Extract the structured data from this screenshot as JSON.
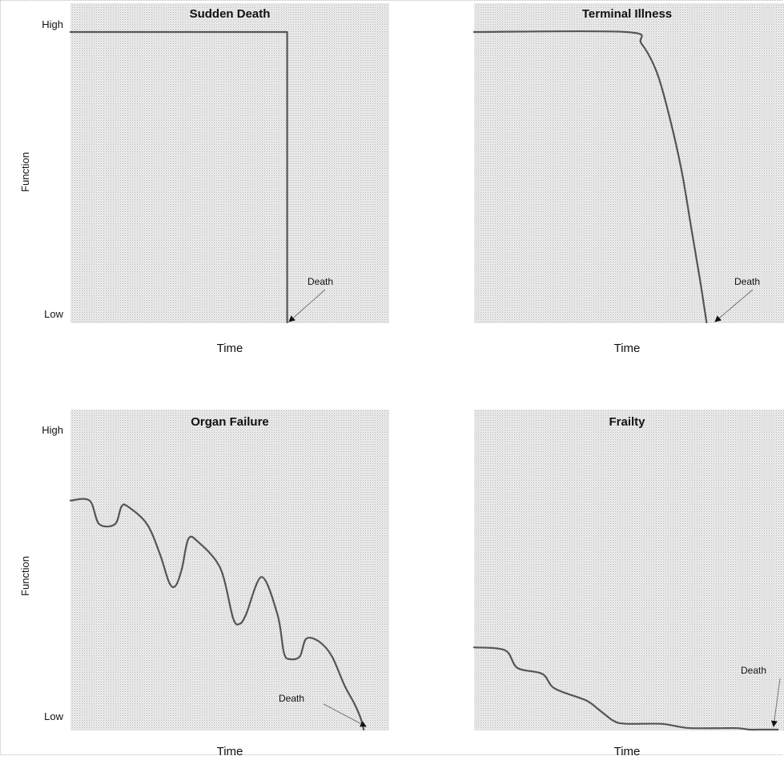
{
  "chart_data": [
    {
      "type": "line",
      "title": "Sudden Death",
      "xlabel": "Time",
      "ylabel": "Function",
      "yticks": [
        "High",
        "Low"
      ],
      "ylim": [
        0,
        100
      ],
      "xlim": [
        0,
        100
      ],
      "x": [
        0,
        68,
        68
      ],
      "y": [
        100,
        100,
        0
      ],
      "annotation": {
        "text": "Death",
        "x": 68,
        "y": 0
      }
    },
    {
      "type": "line",
      "title": "Terminal Illness",
      "xlabel": "Time",
      "ylabel": "",
      "yticks": [],
      "ylim": [
        0,
        100
      ],
      "xlim": [
        0,
        100
      ],
      "x": [
        0,
        49,
        54,
        59,
        63,
        67,
        70,
        73,
        75
      ],
      "y": [
        100,
        100,
        96,
        86,
        71,
        52,
        33,
        14,
        0
      ],
      "annotation": {
        "text": "Death",
        "x": 76,
        "y": 0
      }
    },
    {
      "type": "line",
      "title": "Organ Failure",
      "xlabel": "Time",
      "ylabel": "Function",
      "yticks": [
        "High",
        "Low"
      ],
      "ylim": [
        0,
        100
      ],
      "xlim": [
        0,
        100
      ],
      "x": [
        0,
        6,
        9,
        14,
        16,
        18,
        24,
        28,
        31,
        33,
        35,
        37,
        40,
        47,
        51,
        53,
        55,
        60,
        65,
        67,
        69,
        72,
        74,
        78,
        82,
        86,
        89,
        91,
        92
      ],
      "y": [
        78,
        78,
        70,
        70,
        76,
        76,
        70,
        60,
        50,
        49,
        55,
        65,
        64,
        55,
        38,
        36,
        39,
        52,
        39,
        26,
        24,
        25,
        31,
        30,
        25,
        15,
        9,
        4,
        0
      ],
      "annotation": {
        "text": "Death",
        "x": 91,
        "y": 0
      }
    },
    {
      "type": "line",
      "title": "Frailty",
      "xlabel": "Time",
      "ylabel": "",
      "yticks": [],
      "ylim": [
        0,
        100
      ],
      "xlim": [
        0,
        100
      ],
      "x": [
        0,
        10,
        14,
        22,
        26,
        36,
        40,
        45,
        49,
        60,
        66,
        70,
        80,
        85,
        89,
        91,
        98
      ],
      "y": [
        28,
        27,
        21,
        19,
        14,
        10,
        7,
        3,
        2,
        2,
        1,
        0.5,
        0.5,
        0.5,
        0,
        0,
        0
      ],
      "annotation": {
        "text": "Death",
        "x": 98,
        "y": 0
      }
    }
  ]
}
